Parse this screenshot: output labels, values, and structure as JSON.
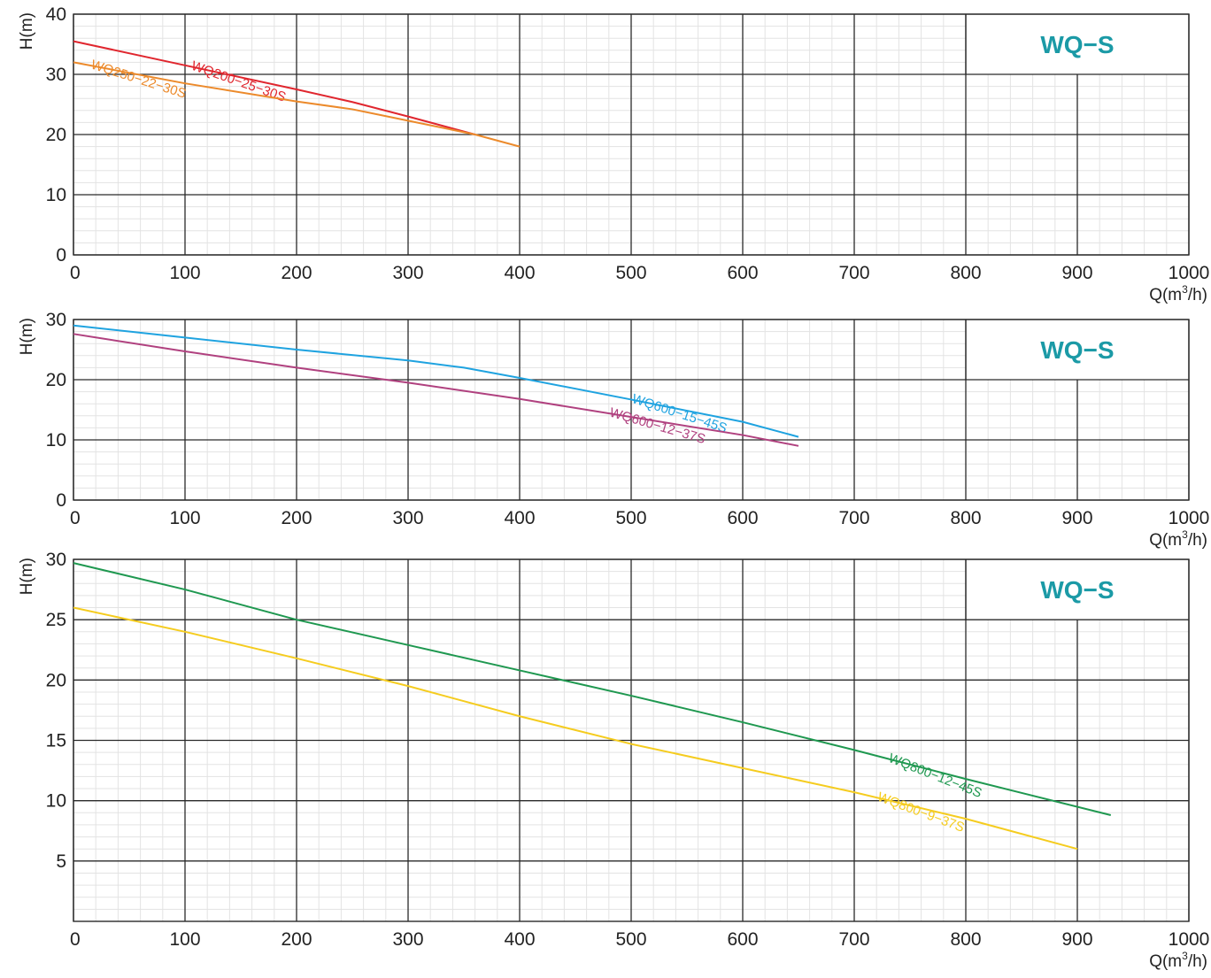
{
  "chart_data": [
    {
      "type": "line",
      "badge": "WQ−S",
      "badge_color": "#1b9aa6",
      "xlabel": "Q(m",
      "xlabel_sup": "3",
      "xlabel_tail": "/h)",
      "ylabel": "H(m)",
      "xlim": [
        0,
        1000
      ],
      "ylim": [
        0,
        40
      ],
      "xticks": [
        0,
        100,
        200,
        300,
        400,
        500,
        600,
        700,
        800,
        900,
        1000
      ],
      "yticks": [
        0,
        10,
        20,
        30,
        40
      ],
      "grid": true,
      "series": [
        {
          "name": "WQ200−25−30S",
          "color": "#e0262e",
          "x": [
            0,
            100,
            200,
            250,
            300,
            360
          ],
          "y": [
            35.5,
            31.5,
            27.5,
            25.4,
            23,
            20
          ],
          "label_at": 105
        },
        {
          "name": "WQ250−22−30S",
          "color": "#ec8a2b",
          "x": [
            0,
            100,
            200,
            250,
            300,
            360,
            400
          ],
          "y": [
            32,
            28.5,
            25.5,
            24.2,
            22.3,
            20,
            18
          ],
          "label_at": 15
        }
      ]
    },
    {
      "type": "line",
      "badge": "WQ−S",
      "badge_color": "#1b9aa6",
      "xlabel": "Q(m",
      "xlabel_sup": "3",
      "xlabel_tail": "/h)",
      "ylabel": "H(m)",
      "xlim": [
        0,
        1000
      ],
      "ylim": [
        0,
        30
      ],
      "xticks": [
        0,
        100,
        200,
        300,
        400,
        500,
        600,
        700,
        800,
        900,
        1000
      ],
      "yticks": [
        0,
        10,
        20,
        30
      ],
      "grid": true,
      "series": [
        {
          "name": "WQ600−15−45S",
          "color": "#1fa3e0",
          "x": [
            0,
            100,
            200,
            300,
            350,
            400,
            500,
            600,
            650
          ],
          "y": [
            29,
            27,
            25,
            23.2,
            22,
            20.3,
            16.7,
            13,
            10.5
          ],
          "label_at": 500
        },
        {
          "name": "WQ600−12−37S",
          "color": "#b0417f",
          "x": [
            0,
            100,
            200,
            300,
            400,
            500,
            600,
            650
          ],
          "y": [
            27.6,
            24.7,
            22,
            19.5,
            16.8,
            13.8,
            10.8,
            9
          ],
          "label_at": 480
        }
      ]
    },
    {
      "type": "line",
      "badge": "WQ−S",
      "badge_color": "#1b9aa6",
      "xlabel": "Q(m",
      "xlabel_sup": "3",
      "xlabel_tail": "/h)",
      "ylabel": "H(m)",
      "xlim": [
        0,
        1000
      ],
      "ylim": [
        0,
        30
      ],
      "xticks": [
        0,
        100,
        200,
        300,
        400,
        500,
        600,
        700,
        800,
        900,
        1000
      ],
      "yticks": [
        5,
        10,
        15,
        20,
        25,
        30
      ],
      "grid": true,
      "series": [
        {
          "name": "WQ800−12−45S",
          "color": "#1f9850",
          "x": [
            0,
            100,
            200,
            300,
            400,
            500,
            600,
            700,
            800,
            930
          ],
          "y": [
            29.7,
            27.5,
            25,
            22.9,
            20.8,
            18.7,
            16.5,
            14.2,
            11.8,
            8.8
          ],
          "label_at": 730
        },
        {
          "name": "WQ800−9−37S",
          "color": "#f5cc1f",
          "x": [
            0,
            100,
            200,
            300,
            400,
            500,
            600,
            700,
            800,
            900
          ],
          "y": [
            26,
            24,
            21.8,
            19.5,
            17,
            14.7,
            12.7,
            10.7,
            8.5,
            6
          ],
          "label_at": 720
        }
      ]
    }
  ]
}
